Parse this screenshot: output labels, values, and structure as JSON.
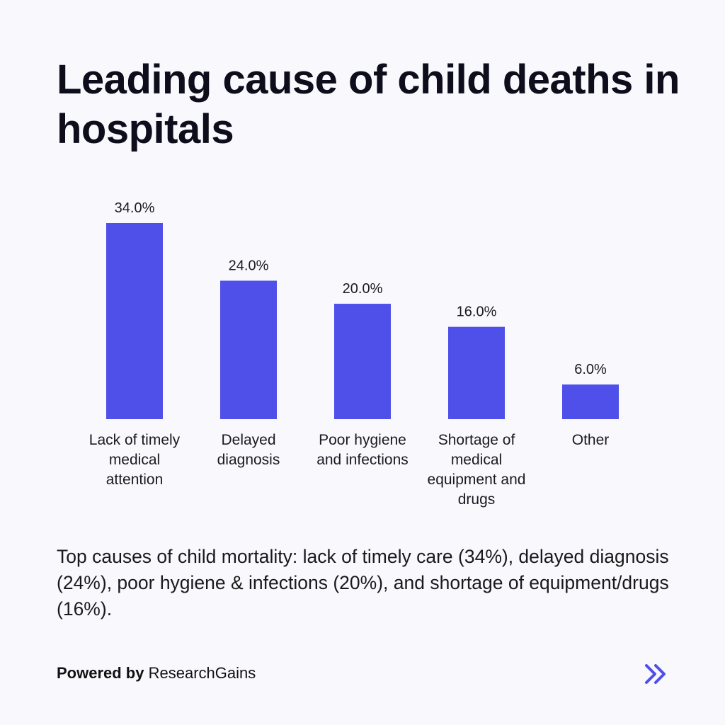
{
  "chart_data": {
    "type": "bar",
    "title": "Leading cause of child deaths in hospitals",
    "categories": [
      [
        "Lack of timely",
        "medical",
        "attention"
      ],
      [
        "Delayed",
        "diagnosis"
      ],
      [
        "Poor hygiene",
        "and infections"
      ],
      [
        "Shortage of",
        "medical",
        "equipment and",
        "drugs"
      ],
      [
        "Other"
      ]
    ],
    "values": [
      34.0,
      24.0,
      20.0,
      16.0,
      6.0
    ],
    "value_labels": [
      "34.0%",
      "24.0%",
      "20.0%",
      "16.0%",
      "6.0%"
    ],
    "ylim": [
      0,
      34
    ],
    "xlabel": "",
    "ylabel": "",
    "grid": false,
    "bar_color": "#4f4fea"
  },
  "summary": "Top causes of child mortality: lack of timely care (34%), delayed diagnosis (24%), poor hygiene & infections (20%), and shortage of equipment/drugs (16%).",
  "footer": {
    "powered_by": "Powered by",
    "brand": "ResearchGains"
  },
  "next_button": {
    "icon": "double-chevron-right-icon",
    "color": "#4f4fea"
  }
}
